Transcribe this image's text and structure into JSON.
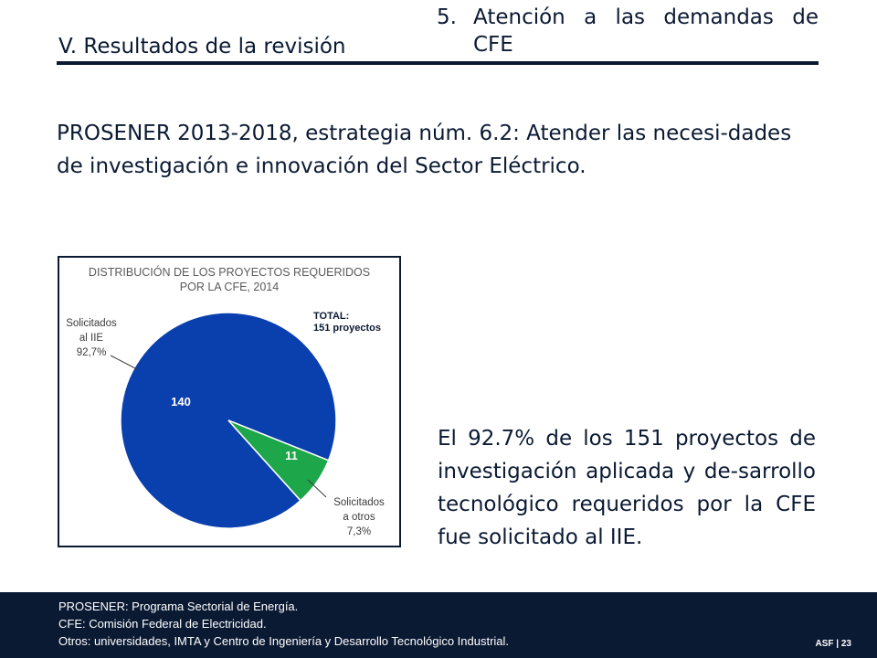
{
  "header": {
    "section_title": "V. Resultados de la revisión",
    "topic_number": "5.",
    "topic_line1": "Atención a las demandas de",
    "topic_line2": "CFE"
  },
  "strategy_text": "PROSENER 2013-2018, estrategia núm. 6.2: Atender las necesi-dades de investigación e innovación del Sector Eléctrico.",
  "chart_data": {
    "type": "pie",
    "title": "DISTRIBUCIÓN DE LOS PROYECTOS REQUERIDOS POR LA CFE, 2014",
    "title_line1": "DISTRIBUCIÓN DE LOS PROYECTOS REQUERIDOS",
    "title_line2": "POR LA CFE, 2014",
    "total_label": "TOTAL:",
    "total_value": "151 proyectos",
    "slices": [
      {
        "label_line1": "Solicitados",
        "label_line2": "al IIE",
        "percent": "92,7%",
        "value": 140,
        "color": "#0a3fae"
      },
      {
        "label_line1": "Solicitados",
        "label_line2": "a otros",
        "percent": "7,3%",
        "value": 11,
        "color": "#1ea64a"
      }
    ]
  },
  "body_text": "El 92.7% de los 151 proyectos de investigación aplicada y de-sarrollo tecnológico requeridos por la CFE fue solicitado al IIE.",
  "footer": {
    "note1": "PROSENER: Programa Sectorial de Energía.",
    "note2": "CFE: Comisión Federal de Electricidad.",
    "note3": "Otros: universidades, IMTA y Centro de Ingeniería y Desarrollo Tecnológico Industrial.",
    "brand": "ASF | 23"
  },
  "colors": {
    "navy": "#0b1a33",
    "pie_blue": "#0a3fae",
    "pie_green": "#1ea64a"
  }
}
